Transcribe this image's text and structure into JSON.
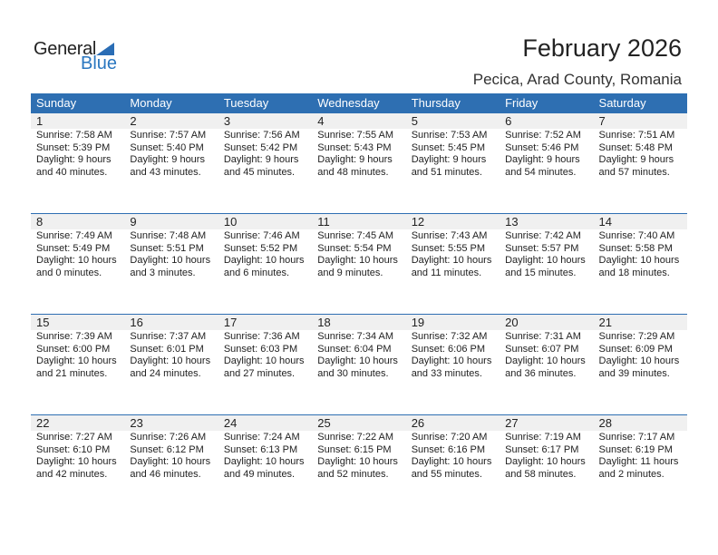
{
  "logo": {
    "line1": "General",
    "line2": "Blue"
  },
  "title": "February 2026",
  "location": "Pecica, Arad County, Romania",
  "days": [
    "Sunday",
    "Monday",
    "Tuesday",
    "Wednesday",
    "Thursday",
    "Friday",
    "Saturday"
  ],
  "weeks": [
    [
      {
        "d": "1",
        "rise": "Sunrise: 7:58 AM",
        "set": "Sunset: 5:39 PM",
        "dl1": "Daylight: 9 hours",
        "dl2": "and 40 minutes."
      },
      {
        "d": "2",
        "rise": "Sunrise: 7:57 AM",
        "set": "Sunset: 5:40 PM",
        "dl1": "Daylight: 9 hours",
        "dl2": "and 43 minutes."
      },
      {
        "d": "3",
        "rise": "Sunrise: 7:56 AM",
        "set": "Sunset: 5:42 PM",
        "dl1": "Daylight: 9 hours",
        "dl2": "and 45 minutes."
      },
      {
        "d": "4",
        "rise": "Sunrise: 7:55 AM",
        "set": "Sunset: 5:43 PM",
        "dl1": "Daylight: 9 hours",
        "dl2": "and 48 minutes."
      },
      {
        "d": "5",
        "rise": "Sunrise: 7:53 AM",
        "set": "Sunset: 5:45 PM",
        "dl1": "Daylight: 9 hours",
        "dl2": "and 51 minutes."
      },
      {
        "d": "6",
        "rise": "Sunrise: 7:52 AM",
        "set": "Sunset: 5:46 PM",
        "dl1": "Daylight: 9 hours",
        "dl2": "and 54 minutes."
      },
      {
        "d": "7",
        "rise": "Sunrise: 7:51 AM",
        "set": "Sunset: 5:48 PM",
        "dl1": "Daylight: 9 hours",
        "dl2": "and 57 minutes."
      }
    ],
    [
      {
        "d": "8",
        "rise": "Sunrise: 7:49 AM",
        "set": "Sunset: 5:49 PM",
        "dl1": "Daylight: 10 hours",
        "dl2": "and 0 minutes."
      },
      {
        "d": "9",
        "rise": "Sunrise: 7:48 AM",
        "set": "Sunset: 5:51 PM",
        "dl1": "Daylight: 10 hours",
        "dl2": "and 3 minutes."
      },
      {
        "d": "10",
        "rise": "Sunrise: 7:46 AM",
        "set": "Sunset: 5:52 PM",
        "dl1": "Daylight: 10 hours",
        "dl2": "and 6 minutes."
      },
      {
        "d": "11",
        "rise": "Sunrise: 7:45 AM",
        "set": "Sunset: 5:54 PM",
        "dl1": "Daylight: 10 hours",
        "dl2": "and 9 minutes."
      },
      {
        "d": "12",
        "rise": "Sunrise: 7:43 AM",
        "set": "Sunset: 5:55 PM",
        "dl1": "Daylight: 10 hours",
        "dl2": "and 11 minutes."
      },
      {
        "d": "13",
        "rise": "Sunrise: 7:42 AM",
        "set": "Sunset: 5:57 PM",
        "dl1": "Daylight: 10 hours",
        "dl2": "and 15 minutes."
      },
      {
        "d": "14",
        "rise": "Sunrise: 7:40 AM",
        "set": "Sunset: 5:58 PM",
        "dl1": "Daylight: 10 hours",
        "dl2": "and 18 minutes."
      }
    ],
    [
      {
        "d": "15",
        "rise": "Sunrise: 7:39 AM",
        "set": "Sunset: 6:00 PM",
        "dl1": "Daylight: 10 hours",
        "dl2": "and 21 minutes."
      },
      {
        "d": "16",
        "rise": "Sunrise: 7:37 AM",
        "set": "Sunset: 6:01 PM",
        "dl1": "Daylight: 10 hours",
        "dl2": "and 24 minutes."
      },
      {
        "d": "17",
        "rise": "Sunrise: 7:36 AM",
        "set": "Sunset: 6:03 PM",
        "dl1": "Daylight: 10 hours",
        "dl2": "and 27 minutes."
      },
      {
        "d": "18",
        "rise": "Sunrise: 7:34 AM",
        "set": "Sunset: 6:04 PM",
        "dl1": "Daylight: 10 hours",
        "dl2": "and 30 minutes."
      },
      {
        "d": "19",
        "rise": "Sunrise: 7:32 AM",
        "set": "Sunset: 6:06 PM",
        "dl1": "Daylight: 10 hours",
        "dl2": "and 33 minutes."
      },
      {
        "d": "20",
        "rise": "Sunrise: 7:31 AM",
        "set": "Sunset: 6:07 PM",
        "dl1": "Daylight: 10 hours",
        "dl2": "and 36 minutes."
      },
      {
        "d": "21",
        "rise": "Sunrise: 7:29 AM",
        "set": "Sunset: 6:09 PM",
        "dl1": "Daylight: 10 hours",
        "dl2": "and 39 minutes."
      }
    ],
    [
      {
        "d": "22",
        "rise": "Sunrise: 7:27 AM",
        "set": "Sunset: 6:10 PM",
        "dl1": "Daylight: 10 hours",
        "dl2": "and 42 minutes."
      },
      {
        "d": "23",
        "rise": "Sunrise: 7:26 AM",
        "set": "Sunset: 6:12 PM",
        "dl1": "Daylight: 10 hours",
        "dl2": "and 46 minutes."
      },
      {
        "d": "24",
        "rise": "Sunrise: 7:24 AM",
        "set": "Sunset: 6:13 PM",
        "dl1": "Daylight: 10 hours",
        "dl2": "and 49 minutes."
      },
      {
        "d": "25",
        "rise": "Sunrise: 7:22 AM",
        "set": "Sunset: 6:15 PM",
        "dl1": "Daylight: 10 hours",
        "dl2": "and 52 minutes."
      },
      {
        "d": "26",
        "rise": "Sunrise: 7:20 AM",
        "set": "Sunset: 6:16 PM",
        "dl1": "Daylight: 10 hours",
        "dl2": "and 55 minutes."
      },
      {
        "d": "27",
        "rise": "Sunrise: 7:19 AM",
        "set": "Sunset: 6:17 PM",
        "dl1": "Daylight: 10 hours",
        "dl2": "and 58 minutes."
      },
      {
        "d": "28",
        "rise": "Sunrise: 7:17 AM",
        "set": "Sunset: 6:19 PM",
        "dl1": "Daylight: 11 hours",
        "dl2": "and 2 minutes."
      }
    ]
  ]
}
